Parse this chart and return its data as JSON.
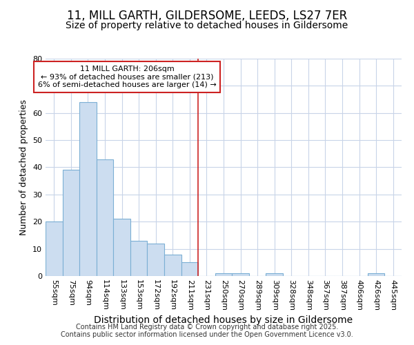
{
  "title1": "11, MILL GARTH, GILDERSOME, LEEDS, LS27 7ER",
  "title2": "Size of property relative to detached houses in Gildersome",
  "xlabel": "Distribution of detached houses by size in Gildersome",
  "ylabel": "Number of detached properties",
  "categories": [
    "55sqm",
    "75sqm",
    "94sqm",
    "114sqm",
    "133sqm",
    "153sqm",
    "172sqm",
    "192sqm",
    "211sqm",
    "231sqm",
    "250sqm",
    "270sqm",
    "289sqm",
    "309sqm",
    "328sqm",
    "348sqm",
    "367sqm",
    "387sqm",
    "406sqm",
    "426sqm",
    "445sqm"
  ],
  "values": [
    20,
    39,
    64,
    43,
    21,
    13,
    12,
    8,
    5,
    0,
    1,
    1,
    0,
    1,
    0,
    0,
    0,
    0,
    0,
    1,
    0
  ],
  "bar_color": "#ccddf0",
  "bar_edge_color": "#7bafd4",
  "vline_pos": 8.5,
  "vline_color": "#cc2222",
  "annotation_line1": "11 MILL GARTH: 206sqm",
  "annotation_line2": "← 93% of detached houses are smaller (213)",
  "annotation_line3": "6% of semi-detached houses are larger (14) →",
  "annotation_box_color": "#ffffff",
  "annotation_box_edge": "#cc2222",
  "ylim": [
    0,
    80
  ],
  "yticks": [
    0,
    10,
    20,
    30,
    40,
    50,
    60,
    70,
    80
  ],
  "fig_background": "#ffffff",
  "plot_background": "#ffffff",
  "grid_color": "#c8d4e8",
  "footer1": "Contains HM Land Registry data © Crown copyright and database right 2025.",
  "footer2": "Contains public sector information licensed under the Open Government Licence v3.0.",
  "title1_fontsize": 12,
  "title2_fontsize": 10,
  "xlabel_fontsize": 10,
  "ylabel_fontsize": 9,
  "tick_fontsize": 8,
  "footer_fontsize": 7
}
